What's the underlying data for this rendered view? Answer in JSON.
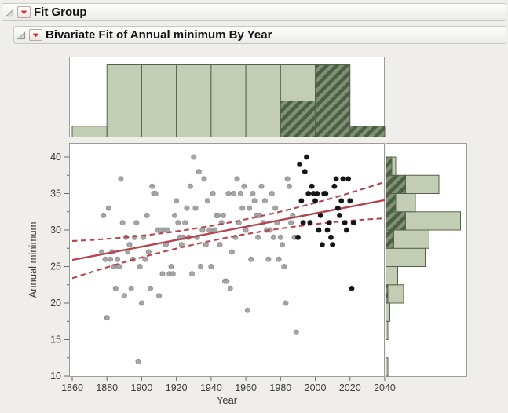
{
  "window": {
    "background": "#efeeea"
  },
  "headers": [
    {
      "label": "Fit Group"
    },
    {
      "label": "Bivariate Fit of Annual minimum By Year"
    }
  ],
  "icons": {
    "disclosure": "open-disclosure-triangle",
    "menu": "red-triangle-menu"
  },
  "colors": {
    "accent_red": "#b5444e",
    "dot_gray": "#a5a5a5",
    "dot_gray_stroke": "#8d8d8d",
    "dot_black": "#161616",
    "hist_fill": "#c3cdb4",
    "hist_stroke": "#55624d",
    "hatch_dark": "#4c5e45",
    "hatch_light": "#7e9170",
    "frame_stroke": "#9b9b98",
    "tick_stroke": "#6b6b68",
    "text": "#3b3b3b",
    "menu_triangle_red": "#cf2b27"
  },
  "chart_data": {
    "type": "scatter",
    "title": "Bivariate Fit of Annual minimum By Year",
    "xlabel": "Year",
    "ylabel": "Annual minimum",
    "xlim": [
      1858,
      2042
    ],
    "ylim": [
      10,
      42
    ],
    "x_ticks": [
      1860,
      1880,
      1900,
      1920,
      1940,
      1960,
      1980,
      2000,
      2020,
      2040
    ],
    "y_ticks": [
      10,
      15,
      20,
      25,
      30,
      35,
      40
    ],
    "y_minor_ticks": [
      12.5,
      17.5,
      22.5,
      27.5,
      32.5,
      37.5
    ],
    "grid": false,
    "legend": "none",
    "selection": {
      "year_start": 1990,
      "year_end": 2022,
      "selected_style": "black dots, hatched histogram bars"
    },
    "fit_line": {
      "x1": 1860,
      "y1": 25.9,
      "x2": 2040,
      "y2": 34.1
    },
    "ci_upper": {
      "start": [
        1860,
        28.5
      ],
      "mid": [
        1950,
        31.0
      ],
      "end": [
        2040,
        36.6
      ]
    },
    "ci_lower": {
      "start": [
        1860,
        23.4
      ],
      "mid": [
        1950,
        29.0
      ],
      "end": [
        2040,
        31.6
      ]
    },
    "top_histogram": {
      "variable": "Year",
      "first_bin": 1860,
      "bin_width": 20,
      "orientation": "vertical",
      "bins": [
        [
          1860,
          3
        ],
        [
          1880,
          20
        ],
        [
          1900,
          20
        ],
        [
          1920,
          20
        ],
        [
          1940,
          20
        ],
        [
          1960,
          20
        ],
        [
          1980,
          20
        ],
        [
          2000,
          20
        ],
        [
          2020,
          3
        ]
      ],
      "selected_bins": [
        [
          1980,
          10
        ],
        [
          2000,
          20
        ],
        [
          2020,
          3
        ]
      ]
    },
    "right_histogram": {
      "variable": "Annual minimum",
      "first_bin": 10,
      "bin_width": 2.5,
      "orientation": "horizontal"
    },
    "points": [
      [
        1877,
        27
      ],
      [
        1878,
        32
      ],
      [
        1879,
        26
      ],
      [
        1880,
        18
      ],
      [
        1881,
        33
      ],
      [
        1882,
        26
      ],
      [
        1883,
        27
      ],
      [
        1884,
        25
      ],
      [
        1885,
        22
      ],
      [
        1886,
        26
      ],
      [
        1887,
        25
      ],
      [
        1888,
        37
      ],
      [
        1889,
        31
      ],
      [
        1890,
        21
      ],
      [
        1891,
        29
      ],
      [
        1892,
        27
      ],
      [
        1893,
        28
      ],
      [
        1894,
        22
      ],
      [
        1895,
        26
      ],
      [
        1896,
        29
      ],
      [
        1897,
        31
      ],
      [
        1898,
        12
      ],
      [
        1899,
        25
      ],
      [
        1900,
        20
      ],
      [
        1901,
        29
      ],
      [
        1902,
        26
      ],
      [
        1903,
        32
      ],
      [
        1904,
        27
      ],
      [
        1905,
        22
      ],
      [
        1906,
        36
      ],
      [
        1907,
        35
      ],
      [
        1908,
        35
      ],
      [
        1909,
        30
      ],
      [
        1910,
        21
      ],
      [
        1911,
        30
      ],
      [
        1912,
        24
      ],
      [
        1913,
        30
      ],
      [
        1914,
        28
      ],
      [
        1915,
        30
      ],
      [
        1916,
        24
      ],
      [
        1917,
        25
      ],
      [
        1918,
        24
      ],
      [
        1919,
        32
      ],
      [
        1920,
        34
      ],
      [
        1921,
        31
      ],
      [
        1922,
        29
      ],
      [
        1923,
        28
      ],
      [
        1924,
        29
      ],
      [
        1925,
        31
      ],
      [
        1926,
        33
      ],
      [
        1927,
        29
      ],
      [
        1928,
        36
      ],
      [
        1929,
        24
      ],
      [
        1930,
        40
      ],
      [
        1931,
        33
      ],
      [
        1932,
        29
      ],
      [
        1933,
        38
      ],
      [
        1934,
        25
      ],
      [
        1935,
        30
      ],
      [
        1936,
        37
      ],
      [
        1937,
        28
      ],
      [
        1938,
        34
      ],
      [
        1939,
        30
      ],
      [
        1940,
        25
      ],
      [
        1941,
        35
      ],
      [
        1942,
        30
      ],
      [
        1943,
        32
      ],
      [
        1944,
        32
      ],
      [
        1945,
        28
      ],
      [
        1946,
        31
      ],
      [
        1947,
        32
      ],
      [
        1948,
        23
      ],
      [
        1949,
        23
      ],
      [
        1950,
        35
      ],
      [
        1951,
        22
      ],
      [
        1952,
        27
      ],
      [
        1953,
        35
      ],
      [
        1954,
        29
      ],
      [
        1955,
        37
      ],
      [
        1956,
        31
      ],
      [
        1957,
        35
      ],
      [
        1958,
        33
      ],
      [
        1959,
        36
      ],
      [
        1960,
        30
      ],
      [
        1961,
        19
      ],
      [
        1962,
        33
      ],
      [
        1963,
        26
      ],
      [
        1964,
        35
      ],
      [
        1965,
        34
      ],
      [
        1966,
        32
      ],
      [
        1967,
        29
      ],
      [
        1968,
        32
      ],
      [
        1969,
        36
      ],
      [
        1970,
        31
      ],
      [
        1971,
        34
      ],
      [
        1972,
        30
      ],
      [
        1973,
        26
      ],
      [
        1974,
        30
      ],
      [
        1975,
        35
      ],
      [
        1976,
        29
      ],
      [
        1977,
        33
      ],
      [
        1978,
        31
      ],
      [
        1979,
        26
      ],
      [
        1980,
        29
      ],
      [
        1981,
        28
      ],
      [
        1982,
        25
      ],
      [
        1983,
        20
      ],
      [
        1984,
        37
      ],
      [
        1985,
        36
      ],
      [
        1986,
        31
      ],
      [
        1987,
        32
      ],
      [
        1988,
        29
      ],
      [
        1989,
        16
      ],
      [
        1990,
        29
      ],
      [
        1991,
        39
      ],
      [
        1992,
        34
      ],
      [
        1993,
        31
      ],
      [
        1994,
        38
      ],
      [
        1995,
        40
      ],
      [
        1996,
        35
      ],
      [
        1997,
        31
      ],
      [
        1998,
        36
      ],
      [
        1999,
        35
      ],
      [
        2000,
        34
      ],
      [
        2001,
        35
      ],
      [
        2002,
        30
      ],
      [
        2003,
        32
      ],
      [
        2004,
        28
      ],
      [
        2005,
        35
      ],
      [
        2006,
        35
      ],
      [
        2007,
        30
      ],
      [
        2008,
        31
      ],
      [
        2009,
        29
      ],
      [
        2010,
        28
      ],
      [
        2011,
        36
      ],
      [
        2012,
        37
      ],
      [
        2013,
        33
      ],
      [
        2014,
        32
      ],
      [
        2015,
        34
      ],
      [
        2016,
        37
      ],
      [
        2017,
        31
      ],
      [
        2018,
        30
      ],
      [
        2019,
        37
      ],
      [
        2020,
        34
      ],
      [
        2021,
        22
      ],
      [
        2022,
        31
      ]
    ]
  }
}
